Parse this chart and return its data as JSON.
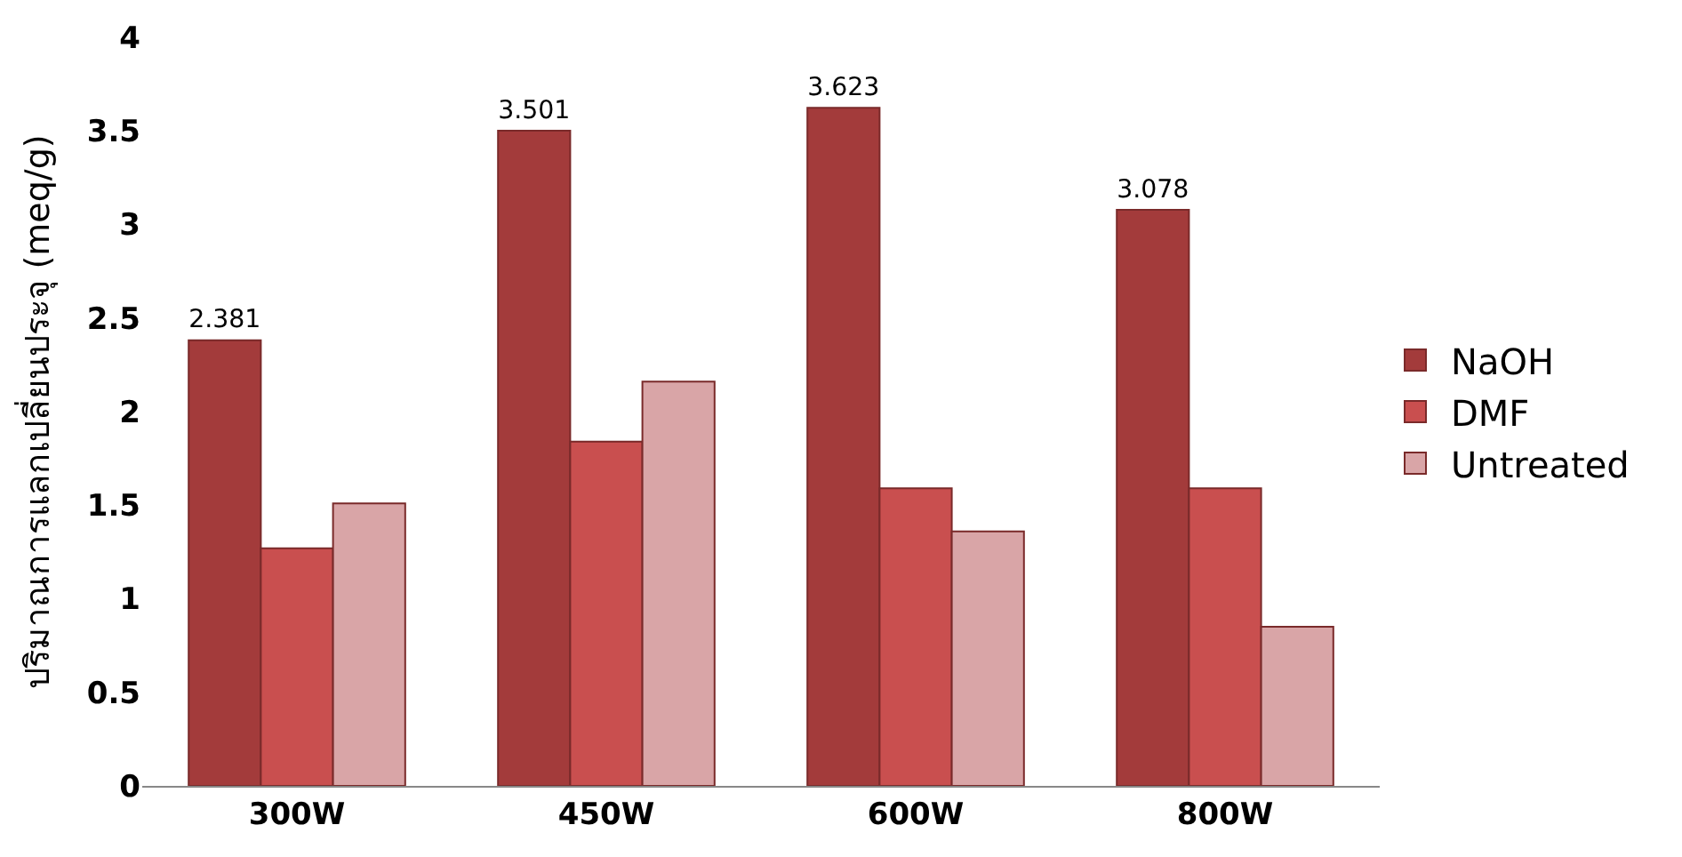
{
  "chart_data": {
    "type": "bar",
    "ylabel": "ปริมาณการแลกเปลี่ยนประจุ (meq/g)",
    "categories": [
      "300W",
      "450W",
      "600W",
      "800W"
    ],
    "series": [
      {
        "name": "NaOH",
        "color": "#a33b3b",
        "values": [
          2.381,
          3.501,
          3.623,
          3.078
        ],
        "value_labels": [
          "2.381",
          "3.501",
          "3.623",
          "3.078"
        ]
      },
      {
        "name": "DMF",
        "color": "#c94f4f",
        "values": [
          1.27,
          1.84,
          1.59,
          1.59
        ]
      },
      {
        "name": "Untreated",
        "color": "#d9a5a7",
        "values": [
          1.51,
          2.16,
          1.36,
          0.85
        ]
      }
    ],
    "ylim": [
      0,
      4
    ],
    "yticks": [
      0,
      0.5,
      1,
      1.5,
      2,
      2.5,
      3,
      3.5,
      4
    ],
    "legend": "right"
  }
}
